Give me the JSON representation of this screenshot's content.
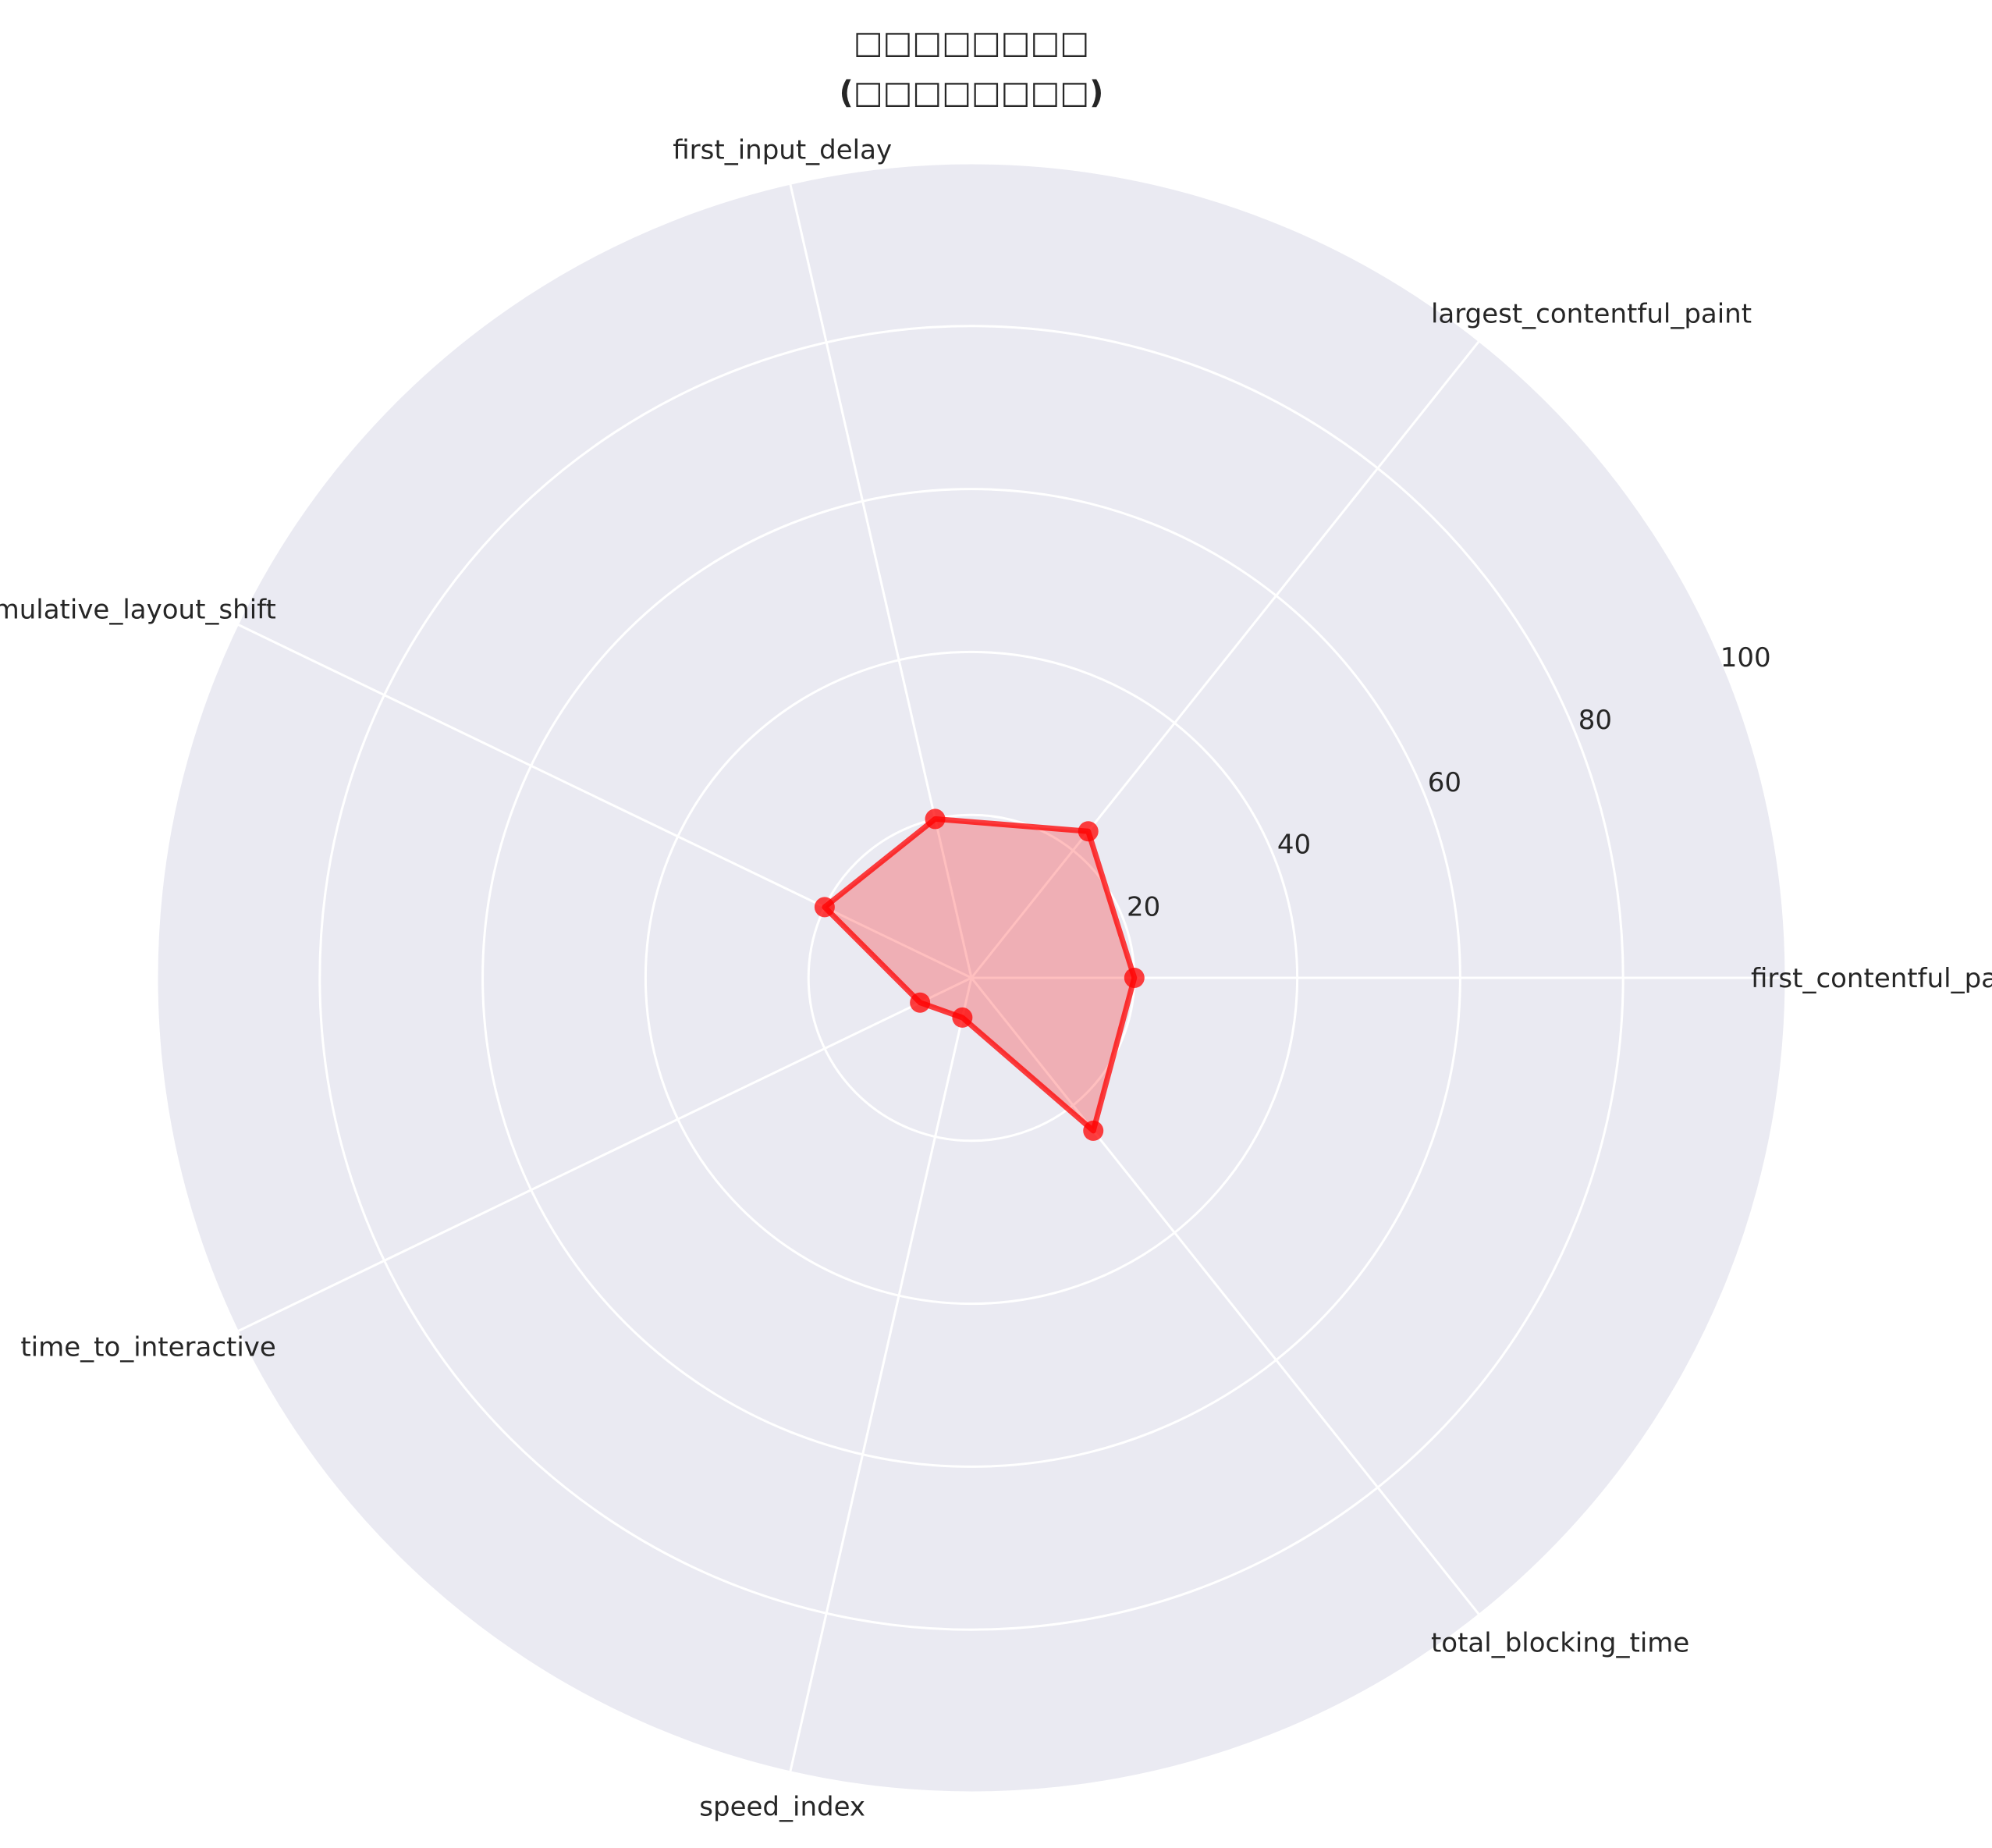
{
  "chart_data": {
    "type": "radar",
    "title_line1": "□□□□□□□□",
    "title_line2": "(□□□□□□□□)",
    "categories": [
      "first_contentful_paint",
      "largest_contentful_paint",
      "first_input_delay",
      "cumulative_layout_shift",
      "time_to_interactive",
      "speed_index",
      "total_blocking_time"
    ],
    "series": [
      {
        "values": [
          20,
          23,
          20,
          20,
          7,
          5,
          24
        ],
        "color": "#ff0000"
      }
    ],
    "rlim": [
      0,
      100
    ],
    "rticks": [
      20,
      40,
      60,
      80,
      100
    ],
    "grid": true,
    "background": "#eaeaf2",
    "grid_color": "#ffffff"
  }
}
